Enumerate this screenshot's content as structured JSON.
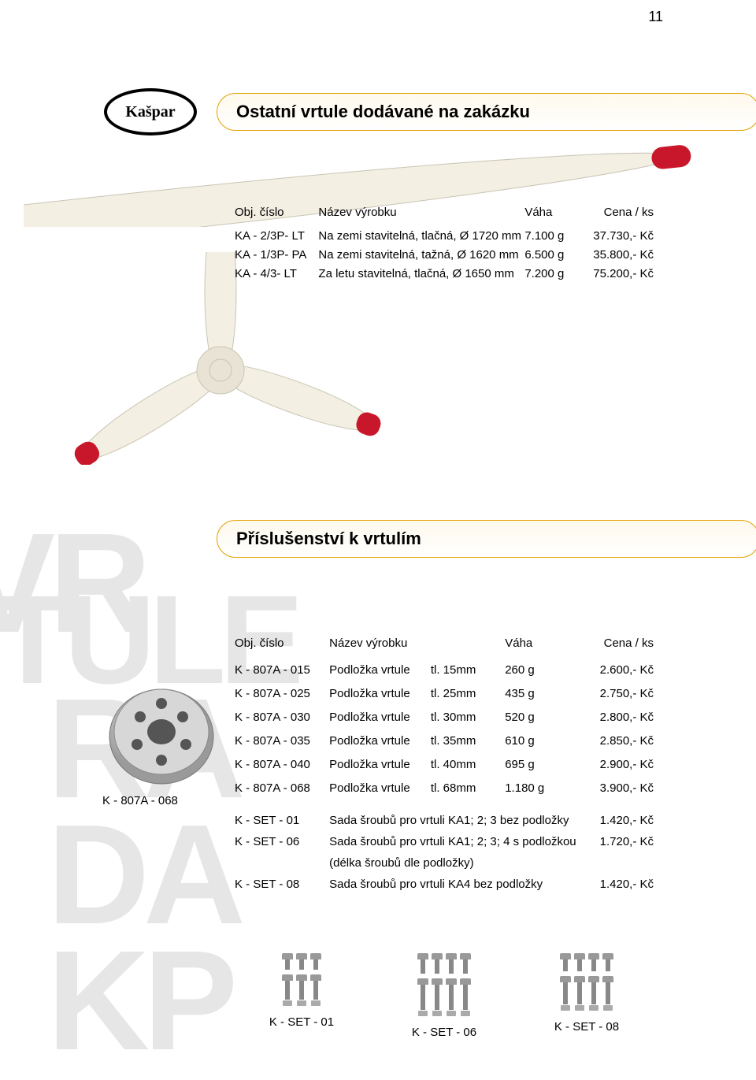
{
  "logo_text": "Kašpar",
  "section1": {
    "title": "Ostatní vrtule dodávané na zakázku",
    "columns": [
      "Obj. číslo",
      "Název výrobku",
      "Váha",
      "Cena / ks"
    ],
    "rows": [
      {
        "code": "KA - 2/3P- LT",
        "name": "Na zemi stavitelná, tlačná, Ø 1720 mm",
        "weight": "7.100 g",
        "price": "37.730,- Kč"
      },
      {
        "code": "KA - 1/3P- PA",
        "name": "Na zemi stavitelná, tažná, Ø 1620 mm",
        "weight": "6.500 g",
        "price": "35.800,- Kč"
      },
      {
        "code": "KA - 4/3- LT",
        "name": "Za letu stavitelná, tlačná, Ø 1650 mm",
        "weight": "7.200 g",
        "price": "75.200,- Kč"
      }
    ]
  },
  "section2": {
    "title": "Příslušenství k vrtulím",
    "columns": [
      "Obj. číslo",
      "Název výrobku",
      "",
      "Váha",
      "Cena / ks"
    ],
    "rows": [
      {
        "code": "K - 807A - 015",
        "name": "Podložka vrtule",
        "spec": "tl. 15mm",
        "weight": "260 g",
        "price": "2.600,- Kč"
      },
      {
        "code": "K - 807A - 025",
        "name": "Podložka vrtule",
        "spec": "tl. 25mm",
        "weight": "435 g",
        "price": "2.750,- Kč"
      },
      {
        "code": "K - 807A - 030",
        "name": "Podložka vrtule",
        "spec": "tl. 30mm",
        "weight": "520 g",
        "price": "2.800,- Kč"
      },
      {
        "code": "K - 807A - 035",
        "name": "Podložka vrtule",
        "spec": "tl. 35mm",
        "weight": "610 g",
        "price": "2.850,- Kč"
      },
      {
        "code": "K - 807A - 040",
        "name": "Podložka vrtule",
        "spec": "tl. 40mm",
        "weight": "695 g",
        "price": "2.900,- Kč"
      },
      {
        "code": "K - 807A - 068",
        "name": "Podložka vrtule",
        "spec": "tl. 68mm",
        "weight": "1.180 g",
        "price": "3.900,- Kč"
      }
    ],
    "set_rows": [
      {
        "code": "K - SET - 01",
        "desc": "Sada šroubů pro vrtuli KA1; 2; 3 bez podložky",
        "price": "1.420,- Kč"
      },
      {
        "code": "K - SET - 06",
        "desc": "Sada šroubů pro vrtuli KA1; 2; 3; 4 s podložkou",
        "price": "1.720,- Kč"
      },
      {
        "code": "",
        "desc": "(délka šroubů dle podložky)",
        "price": ""
      },
      {
        "code": "K - SET - 08",
        "desc": "Sada šroubů pro vrtuli KA4 bez podložky",
        "price": "1.420,- Kč"
      }
    ]
  },
  "hub_caption": "K - 807A - 068",
  "bolt_sets": [
    {
      "label": "K - SET - 01",
      "top_count": 3,
      "bottom_count": 3,
      "shaft_height": 24
    },
    {
      "label": "K - SET - 06",
      "top_count": 4,
      "bottom_count": 4,
      "shaft_height": 32
    },
    {
      "label": "K - SET - 08",
      "top_count": 4,
      "bottom_count": 4,
      "shaft_height": 28
    }
  ],
  "watermark": {
    "line1": "VR",
    "line2": "TULE",
    "line3": "RA",
    "line4": "DA",
    "line5": "KP"
  },
  "page_number": "11",
  "colors": {
    "header_border": "#e3a000",
    "header_bg_top": "#fef9ec",
    "header_bg_bottom": "#ffffff",
    "watermark": "#e6e6e6",
    "text": "#000000",
    "prop_red": "#c8172a",
    "prop_cream": "#f3efe2",
    "metal_gray": "#a9a9a9"
  },
  "typography": {
    "title_fontsize": 22,
    "body_fontsize": 15,
    "watermark_fontsize": 180,
    "font_family": "Arial"
  }
}
